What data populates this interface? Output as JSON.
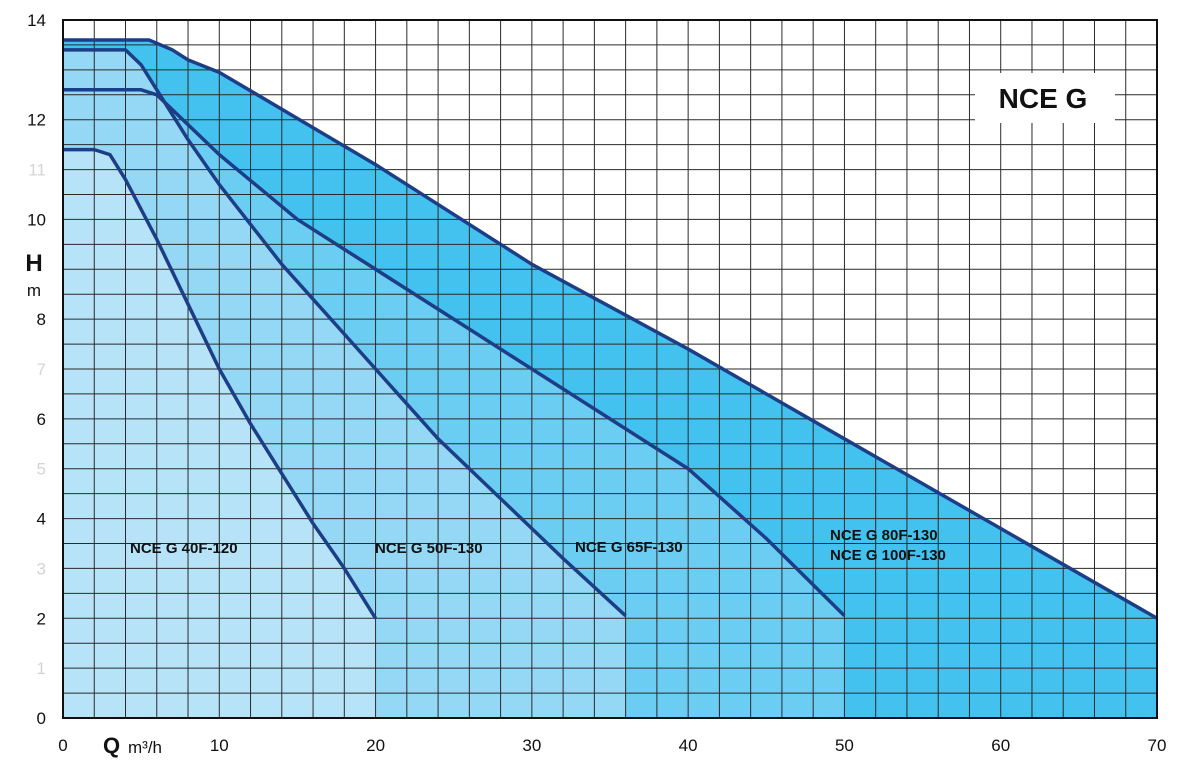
{
  "chart_data": {
    "type": "line",
    "title": "NCE G",
    "x_label": "Q",
    "x_unit": "m³/h",
    "y_label": "H",
    "y_unit": "m",
    "xlim": [
      0,
      70
    ],
    "ylim": [
      0,
      14
    ],
    "xticks": [
      0,
      10,
      20,
      30,
      40,
      50,
      60,
      70
    ],
    "yticks": [
      0,
      2,
      4,
      6,
      8,
      10,
      12,
      14
    ],
    "minor_yticks": [
      1,
      3,
      5,
      7,
      11
    ],
    "minor_tick_color": "#d4d4d4",
    "xgrid": [
      0,
      2,
      4,
      6,
      8,
      10,
      12,
      14,
      16,
      18,
      20,
      22,
      24,
      26,
      28,
      30,
      32,
      34,
      36,
      38,
      40,
      42,
      44,
      46,
      48,
      50,
      52,
      54,
      56,
      58,
      60,
      62,
      64,
      66,
      68,
      70
    ],
    "ygrid": [
      0,
      0.5,
      1,
      1.5,
      2,
      2.5,
      3,
      3.5,
      4,
      4.5,
      5,
      5.5,
      6,
      6.5,
      7,
      7.5,
      8,
      8.5,
      9,
      9.5,
      10,
      10.5,
      11,
      11.5,
      12,
      12.5,
      13,
      13.5,
      14
    ],
    "grid": true,
    "line_color": "#1d3e86",
    "series": [
      {
        "labels": [
          "NCE G   80F-130",
          "NCE G 100F-130"
        ],
        "color": "#44c2ef",
        "x": [
          0,
          5.5,
          7,
          8,
          10,
          20,
          30,
          40,
          50,
          60,
          70
        ],
        "values": [
          13.6,
          13.6,
          13.4,
          13.2,
          12.95,
          11.1,
          9.1,
          7.4,
          5.6,
          3.8,
          2.0
        ]
      },
      {
        "labels": [
          "NCE G 65F-130"
        ],
        "color": "#6ccdf3",
        "x": [
          0,
          5,
          6,
          8,
          10,
          15,
          20,
          25,
          30,
          35,
          40,
          45,
          50
        ],
        "values": [
          12.6,
          12.6,
          12.5,
          11.9,
          11.3,
          10.0,
          9.0,
          8.0,
          7.0,
          6.0,
          5.0,
          3.6,
          2.05
        ]
      },
      {
        "labels": [
          "NCE G 50F-130"
        ],
        "color": "#95d8f6",
        "x": [
          0,
          4,
          5,
          6,
          8,
          10,
          12,
          14,
          16,
          20,
          24,
          28,
          32,
          36
        ],
        "values": [
          13.4,
          13.4,
          13.1,
          12.6,
          11.6,
          10.7,
          9.9,
          9.1,
          8.4,
          7.0,
          5.6,
          4.4,
          3.2,
          2.05
        ]
      },
      {
        "labels": [
          "NCE G 40F-120"
        ],
        "color": "#b6e3f8",
        "x": [
          0,
          2,
          3,
          4,
          6,
          8,
          10,
          12,
          14,
          16,
          18,
          20
        ],
        "values": [
          11.4,
          11.4,
          11.3,
          10.8,
          9.6,
          8.3,
          7.0,
          5.9,
          4.9,
          3.9,
          3.0,
          2.0
        ]
      }
    ]
  }
}
